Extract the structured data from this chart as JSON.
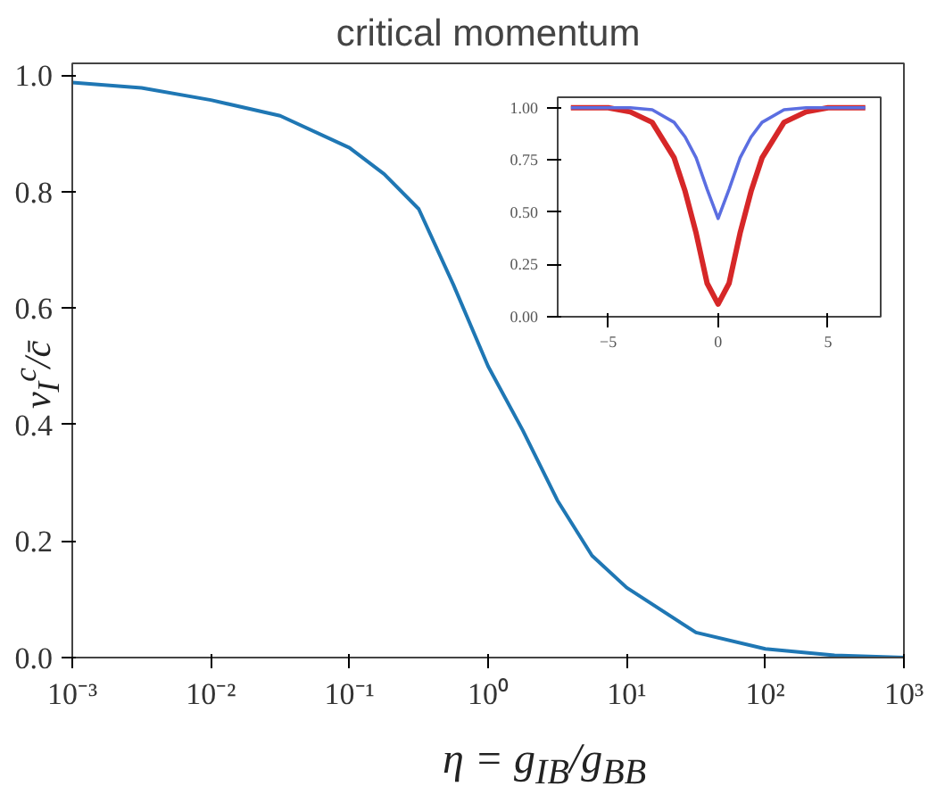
{
  "chart_data": [
    {
      "type": "line",
      "title": "critical momentum",
      "xlabel": "η = g$_{IB}$/g$_{BB}$",
      "ylabel": "v$_{I}$$^{c}$/c̄",
      "log": "x",
      "grid": false,
      "marker": "none",
      "line_style": "solid",
      "x": [
        0.001,
        0.00316,
        0.01,
        0.0316,
        0.1,
        0.178,
        0.316,
        0.562,
        1,
        1.78,
        3.16,
        5.62,
        10,
        31.6,
        100,
        316,
        1000
      ],
      "series": [
        {
          "color": "#1f77b4",
          "values": [
            0.987,
            0.978,
            0.957,
            0.93,
            0.875,
            0.83,
            0.77,
            0.64,
            0.5,
            0.39,
            0.27,
            0.175,
            0.12,
            0.043,
            0.015,
            0.004,
            0.0
          ]
        }
      ],
      "xlim": [
        0.001,
        1000
      ],
      "ylim": [
        0,
        1.02
      ],
      "xticks": [
        {
          "value": 0.001,
          "label": "10⁻³"
        },
        {
          "value": 0.01,
          "label": "10⁻²"
        },
        {
          "value": 0.1,
          "label": "10⁻¹"
        },
        {
          "value": 1,
          "label": "10⁰"
        },
        {
          "value": 10,
          "label": "10¹"
        },
        {
          "value": 100,
          "label": "10²"
        },
        {
          "value": 1000,
          "label": "10³"
        }
      ],
      "yticks": [
        {
          "value": 0,
          "label": "0.0"
        },
        {
          "value": 0.2,
          "label": "0.2"
        },
        {
          "value": 0.4,
          "label": "0.4"
        },
        {
          "value": 0.6,
          "label": "0.6"
        },
        {
          "value": 0.8,
          "label": "0.8"
        },
        {
          "value": 1,
          "label": "1.0"
        }
      ]
    },
    {
      "type": "line",
      "grid": false,
      "marker": "none",
      "line_style": "solid",
      "x": [
        -6.7,
        -5,
        -4,
        -3,
        -2,
        -1.5,
        -1,
        -0.5,
        0,
        0.5,
        1,
        1.5,
        2,
        3,
        4,
        5,
        6.7
      ],
      "series": [
        {
          "color": "#d62728",
          "values": [
            1.0,
            1.0,
            0.98,
            0.93,
            0.76,
            0.6,
            0.4,
            0.16,
            0.06,
            0.16,
            0.4,
            0.6,
            0.76,
            0.93,
            0.98,
            1.0,
            1.0
          ]
        },
        {
          "color": "#5b6ee1",
          "values": [
            1.0,
            1.0,
            1.0,
            0.99,
            0.93,
            0.86,
            0.76,
            0.61,
            0.47,
            0.61,
            0.76,
            0.86,
            0.93,
            0.99,
            1.0,
            1.0,
            1.0
          ]
        }
      ],
      "xlim": [
        -7.3,
        7.4
      ],
      "ylim": [
        0,
        1.05
      ],
      "xticks": [
        {
          "value": -5,
          "label": "−5"
        },
        {
          "value": 0,
          "label": "0"
        },
        {
          "value": 5,
          "label": "5"
        }
      ],
      "yticks": [
        {
          "value": 0,
          "label": "0.00"
        },
        {
          "value": 0.25,
          "label": "0.25"
        },
        {
          "value": 0.5,
          "label": "0.50"
        },
        {
          "value": 0.75,
          "label": "0.75"
        },
        {
          "value": 1,
          "label": "1.00"
        }
      ]
    }
  ]
}
